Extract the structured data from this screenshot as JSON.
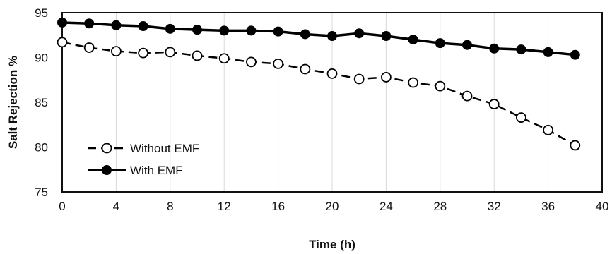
{
  "chart_data": {
    "type": "line",
    "xlabel": "Time (h)",
    "ylabel": "Salt Rejection %",
    "xlim": [
      0,
      40
    ],
    "ylim": [
      75,
      95
    ],
    "xticks": [
      0,
      4,
      8,
      12,
      16,
      20,
      24,
      28,
      32,
      36,
      40
    ],
    "yticks": [
      75,
      80,
      85,
      90,
      95
    ],
    "grid": "vertical",
    "legend_position": "lower-left",
    "series": [
      {
        "name": "Without EMF",
        "line_style": "dashed",
        "marker": "open-circle",
        "color": "#000000",
        "x": [
          0,
          2,
          4,
          6,
          8,
          10,
          12,
          14,
          16,
          18,
          20,
          22,
          24,
          26,
          28,
          30,
          32,
          34,
          36,
          38
        ],
        "y": [
          91.7,
          91.1,
          90.7,
          90.5,
          90.6,
          90.2,
          89.9,
          89.5,
          89.3,
          88.7,
          88.2,
          87.6,
          87.8,
          87.2,
          86.8,
          85.7,
          84.8,
          83.3,
          81.9,
          80.2
        ]
      },
      {
        "name": "With EMF",
        "line_style": "solid",
        "marker": "filled-circle",
        "color": "#000000",
        "x": [
          0,
          2,
          4,
          6,
          8,
          10,
          12,
          14,
          16,
          18,
          20,
          22,
          24,
          26,
          28,
          30,
          32,
          34,
          36,
          38
        ],
        "y": [
          93.9,
          93.8,
          93.6,
          93.5,
          93.2,
          93.1,
          93.0,
          93.0,
          92.9,
          92.6,
          92.4,
          92.7,
          92.4,
          92.0,
          91.6,
          91.4,
          91.0,
          90.9,
          90.6,
          90.3
        ]
      }
    ]
  }
}
